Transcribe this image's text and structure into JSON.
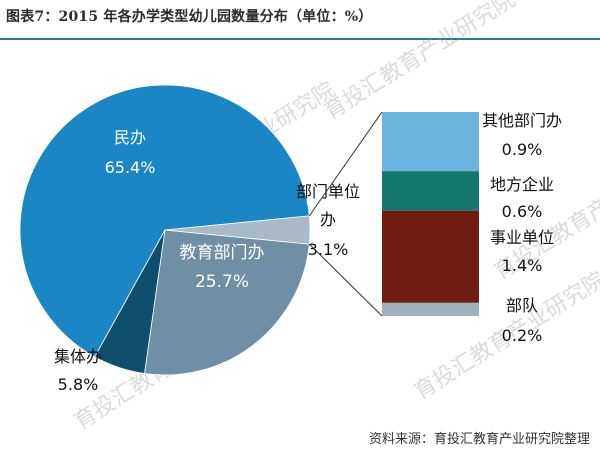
{
  "title": "图表7：2015 年各办学类型幼儿园数量分布（单位：%）",
  "source": "资料来源：育投汇教育产业研究院整理",
  "watermark": "育投汇教育产业研究院",
  "chart_data": [
    {
      "type": "pie",
      "title": "",
      "slices": [
        {
          "name": "民办",
          "value": 65.4,
          "label": "65.4%",
          "color": "#1a86c4"
        },
        {
          "name": "教育部门办",
          "value": 25.7,
          "label": "25.7%",
          "color": "#6f8fa6"
        },
        {
          "name": "集体办",
          "value": 5.8,
          "label": "5.8%",
          "color": "#0f4f6e"
        },
        {
          "name": "部门单位办",
          "name_lines": [
            "部门单位",
            "办"
          ],
          "value": 3.1,
          "label": "3.1%",
          "color": "#a9b9c6"
        }
      ]
    },
    {
      "type": "bar",
      "stacked": true,
      "title": "",
      "parent": "部门单位办",
      "series": [
        {
          "name": "其他部门办",
          "value": 0.9,
          "label": "0.9%",
          "color": "#6ab4dd"
        },
        {
          "name": "地方企业",
          "value": 0.6,
          "label": "0.6%",
          "color": "#14786c"
        },
        {
          "name": "事业单位",
          "value": 1.4,
          "label": "1.4%",
          "color": "#6e1d10"
        },
        {
          "name": "部队",
          "value": 0.2,
          "label": "0.2%",
          "color": "#9fb0bf"
        }
      ]
    }
  ]
}
